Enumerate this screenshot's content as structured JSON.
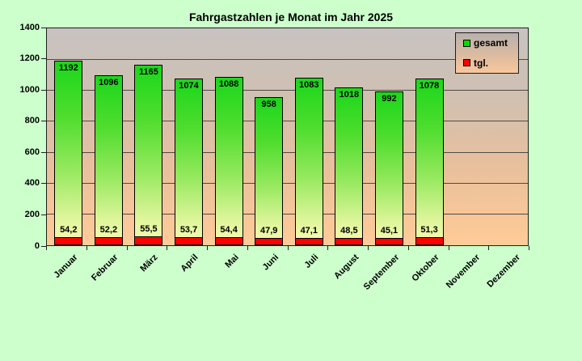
{
  "title": "Fahrgastzahlen je Monat im Jahr 2025",
  "legend": {
    "items": [
      {
        "label": "gesamt",
        "color": "#00dd00"
      },
      {
        "label": "tgl.",
        "color": "#ff0000"
      }
    ]
  },
  "chart_data": {
    "type": "bar",
    "title": "Fahrgastzahlen je Monat im Jahr 2025",
    "categories": [
      "Januar",
      "Februar",
      "März",
      "April",
      "Mai",
      "Juni",
      "Juli",
      "August",
      "September",
      "Oktober",
      "November",
      "Dezember"
    ],
    "series": [
      {
        "name": "gesamt",
        "color": "#00dd00",
        "values": [
          1192,
          1096,
          1165,
          1074,
          1088,
          958,
          1083,
          1018,
          992,
          1078,
          null,
          null
        ],
        "labels": [
          "1192",
          "1096",
          "1165",
          "1074",
          "1088",
          "958",
          "1083",
          "1018",
          "992",
          "1078",
          "",
          ""
        ]
      },
      {
        "name": "tgl.",
        "color": "#ff0000",
        "values": [
          54.2,
          52.2,
          55.5,
          53.7,
          54.4,
          47.9,
          47.1,
          48.5,
          45.1,
          51.3,
          null,
          null
        ],
        "labels": [
          "54,2",
          "52,2",
          "55,5",
          "53,7",
          "54,4",
          "47,9",
          "47,1",
          "48,5",
          "45,1",
          "51,3",
          "",
          ""
        ]
      }
    ],
    "ylim": [
      0,
      1400
    ],
    "yticks": [
      0,
      200,
      400,
      600,
      800,
      1000,
      1200,
      1400
    ],
    "grid": true,
    "legend_position": "top-right",
    "xlabel": "",
    "ylabel": ""
  },
  "colors": {
    "canvas_bg": "#ccffcc",
    "plot_gradient_top": "#c7c3c1",
    "plot_gradient_bottom": "#ffcb97",
    "bar_gradient_top": "#1bd71b",
    "bar_gradient_bottom": "#f8fbb2",
    "bar_border": "#000000",
    "tgl_color": "#ff0000",
    "gridline": "#4f4a45",
    "text": "#000000"
  }
}
